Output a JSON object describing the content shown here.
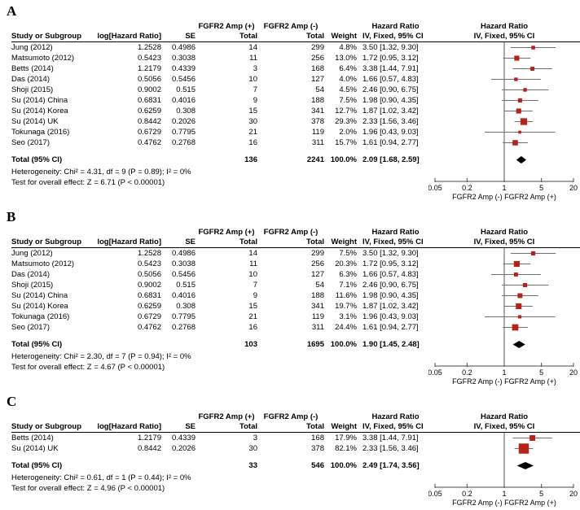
{
  "colors": {
    "square_red": "#b92016",
    "diamond_black": "#000000",
    "ci_line_gray": "#6e6e6e",
    "axis_gray": "#4a4a4a",
    "no_effect_line": "#555555"
  },
  "headers": {
    "group_amp_pos": "FGFR2 Amp (+)",
    "group_amp_neg": "FGFR2 Amp (-)",
    "group_hazard_ratio": "Hazard Ratio",
    "study": "Study or Subgroup",
    "log_hr": "log[Hazard Ratio]",
    "se": "SE",
    "total": "Total",
    "weight": "Weight",
    "ci": "IV, Fixed, 95% CI"
  },
  "chart_data": [
    {
      "type": "forest",
      "label": "A",
      "scale": "log",
      "axis": {
        "ticks": [
          "0.05",
          "0.2",
          "1",
          "5",
          "20"
        ],
        "min": 0.05,
        "max": 20,
        "xlabel_left": "FGFR2 Amp (-)",
        "xlabel_right": "FGFR2 Amp (+)"
      },
      "studies": [
        {
          "study": "Jung (2012)",
          "log_hr": "1.2528",
          "se": "0.4986",
          "n_pos": "14",
          "n_neg": "299",
          "weight": "4.8%",
          "hr_text": "3.50 [1.32, 9.30]",
          "hr": 3.5,
          "lo": 1.32,
          "hi": 9.3
        },
        {
          "study": "Matsumoto (2012)",
          "log_hr": "0.5423",
          "se": "0.3038",
          "n_pos": "11",
          "n_neg": "256",
          "weight": "13.0%",
          "hr_text": "1.72 [0.95, 3.12]",
          "hr": 1.72,
          "lo": 0.95,
          "hi": 3.12
        },
        {
          "study": "Betts (2014)",
          "log_hr": "1.2179",
          "se": "0.4339",
          "n_pos": "3",
          "n_neg": "168",
          "weight": "6.4%",
          "hr_text": "3.38 [1.44, 7.91]",
          "hr": 3.38,
          "lo": 1.44,
          "hi": 7.91
        },
        {
          "study": "Das (2014)",
          "log_hr": "0.5056",
          "se": "0.5456",
          "n_pos": "10",
          "n_neg": "127",
          "weight": "4.0%",
          "hr_text": "1.66 [0.57, 4.83]",
          "hr": 1.66,
          "lo": 0.57,
          "hi": 4.83
        },
        {
          "study": "Shoji (2015)",
          "log_hr": "0.9002",
          "se": "0.515",
          "n_pos": "7",
          "n_neg": "54",
          "weight": "4.5%",
          "hr_text": "2.46 [0.90, 6.75]",
          "hr": 2.46,
          "lo": 0.9,
          "hi": 6.75
        },
        {
          "study": "Su (2014) China",
          "log_hr": "0.6831",
          "se": "0.4016",
          "n_pos": "9",
          "n_neg": "188",
          "weight": "7.5%",
          "hr_text": "1.98 [0.90, 4.35]",
          "hr": 1.98,
          "lo": 0.9,
          "hi": 4.35
        },
        {
          "study": "Su (2014) Korea",
          "log_hr": "0.6259",
          "se": "0.308",
          "n_pos": "15",
          "n_neg": "341",
          "weight": "12.7%",
          "hr_text": "1.87 [1.02, 3.42]",
          "hr": 1.87,
          "lo": 1.02,
          "hi": 3.42
        },
        {
          "study": "Su (2014) UK",
          "log_hr": "0.8442",
          "se": "0.2026",
          "n_pos": "30",
          "n_neg": "378",
          "weight": "29.3%",
          "hr_text": "2.33 [1.56, 3.46]",
          "hr": 2.33,
          "lo": 1.56,
          "hi": 3.46
        },
        {
          "study": "Tokunaga (2016)",
          "log_hr": "0.6729",
          "se": "0.7795",
          "n_pos": "21",
          "n_neg": "119",
          "weight": "2.0%",
          "hr_text": "1.96 [0.43, 9.03]",
          "hr": 1.96,
          "lo": 0.43,
          "hi": 9.03
        },
        {
          "study": "Seo (2017)",
          "log_hr": "0.4762",
          "se": "0.2768",
          "n_pos": "16",
          "n_neg": "311",
          "weight": "15.7%",
          "hr_text": "1.61 [0.94, 2.77]",
          "hr": 1.61,
          "lo": 0.94,
          "hi": 2.77
        }
      ],
      "total": {
        "label": "Total (95% CI)",
        "n_pos": "136",
        "n_neg": "2241",
        "weight": "100.0%",
        "hr_text": "2.09 [1.68, 2.59]",
        "hr": 2.09,
        "lo": 1.68,
        "hi": 2.59
      },
      "heterogeneity": "Heterogeneity: Chi² = 4.31, df = 9 (P = 0.89); I² = 0%",
      "overall": "Test for overall effect: Z = 6.71 (P < 0.00001)"
    },
    {
      "type": "forest",
      "label": "B",
      "scale": "log",
      "axis": {
        "ticks": [
          "0.05",
          "0.2",
          "1",
          "5",
          "20"
        ],
        "min": 0.05,
        "max": 20,
        "xlabel_left": "FGFR2 Amp (-)",
        "xlabel_right": "FGFR2 Amp (+)"
      },
      "studies": [
        {
          "study": "Jung (2012)",
          "log_hr": "1.2528",
          "se": "0.4986",
          "n_pos": "14",
          "n_neg": "299",
          "weight": "7.5%",
          "hr_text": "3.50 [1.32, 9.30]",
          "hr": 3.5,
          "lo": 1.32,
          "hi": 9.3
        },
        {
          "study": "Matsumoto (2012)",
          "log_hr": "0.5423",
          "se": "0.3038",
          "n_pos": "11",
          "n_neg": "256",
          "weight": "20.3%",
          "hr_text": "1.72 [0.95, 3.12]",
          "hr": 1.72,
          "lo": 0.95,
          "hi": 3.12
        },
        {
          "study": "Das (2014)",
          "log_hr": "0.5056",
          "se": "0.5456",
          "n_pos": "10",
          "n_neg": "127",
          "weight": "6.3%",
          "hr_text": "1.66 [0.57, 4.83]",
          "hr": 1.66,
          "lo": 0.57,
          "hi": 4.83
        },
        {
          "study": "Shoji (2015)",
          "log_hr": "0.9002",
          "se": "0.515",
          "n_pos": "7",
          "n_neg": "54",
          "weight": "7.1%",
          "hr_text": "2.46 [0.90, 6.75]",
          "hr": 2.46,
          "lo": 0.9,
          "hi": 6.75
        },
        {
          "study": "Su (2014) China",
          "log_hr": "0.6831",
          "se": "0.4016",
          "n_pos": "9",
          "n_neg": "188",
          "weight": "11.6%",
          "hr_text": "1.98 [0.90, 4.35]",
          "hr": 1.98,
          "lo": 0.9,
          "hi": 4.35
        },
        {
          "study": "Su (2014) Korea",
          "log_hr": "0.6259",
          "se": "0.308",
          "n_pos": "15",
          "n_neg": "341",
          "weight": "19.7%",
          "hr_text": "1.87 [1.02, 3.42]",
          "hr": 1.87,
          "lo": 1.02,
          "hi": 3.42
        },
        {
          "study": "Tokunaga (2016)",
          "log_hr": "0.6729",
          "se": "0.7795",
          "n_pos": "21",
          "n_neg": "119",
          "weight": "3.1%",
          "hr_text": "1.96 [0.43, 9.03]",
          "hr": 1.96,
          "lo": 0.43,
          "hi": 9.03
        },
        {
          "study": "Seo (2017)",
          "log_hr": "0.4762",
          "se": "0.2768",
          "n_pos": "16",
          "n_neg": "311",
          "weight": "24.4%",
          "hr_text": "1.61 [0.94, 2.77]",
          "hr": 1.61,
          "lo": 0.94,
          "hi": 2.77
        }
      ],
      "total": {
        "label": "Total (95% CI)",
        "n_pos": "103",
        "n_neg": "1695",
        "weight": "100.0%",
        "hr_text": "1.90 [1.45, 2.48]",
        "hr": 1.9,
        "lo": 1.45,
        "hi": 2.48
      },
      "heterogeneity": "Heterogeneity: Chi² = 2.30, df = 7 (P = 0.94); I² = 0%",
      "overall": "Test for overall effect: Z = 4.67 (P < 0.00001)"
    },
    {
      "type": "forest",
      "label": "C",
      "scale": "log",
      "axis": {
        "ticks": [
          "0.05",
          "0.2",
          "1",
          "5",
          "20"
        ],
        "min": 0.05,
        "max": 20,
        "xlabel_left": "FGFR2 Amp (-)",
        "xlabel_right": "FGFR2 Amp (+)"
      },
      "studies": [
        {
          "study": "Betts (2014)",
          "log_hr": "1.2179",
          "se": "0.4339",
          "n_pos": "3",
          "n_neg": "168",
          "weight": "17.9%",
          "hr_text": "3.38 [1.44, 7.91]",
          "hr": 3.38,
          "lo": 1.44,
          "hi": 7.91
        },
        {
          "study": "Su (2014) UK",
          "log_hr": "0.8442",
          "se": "0.2026",
          "n_pos": "30",
          "n_neg": "378",
          "weight": "82.1%",
          "hr_text": "2.33 [1.56, 3.46]",
          "hr": 2.33,
          "lo": 1.56,
          "hi": 3.46
        }
      ],
      "total": {
        "label": "Total (95% CI)",
        "n_pos": "33",
        "n_neg": "546",
        "weight": "100.0%",
        "hr_text": "2.49 [1.74, 3.56]",
        "hr": 2.49,
        "lo": 1.74,
        "hi": 3.56
      },
      "heterogeneity": "Heterogeneity: Chi² = 0.61, df = 1 (P = 0.44); I² = 0%",
      "overall": "Test for overall effect: Z = 4.96 (P < 0.00001)"
    }
  ]
}
